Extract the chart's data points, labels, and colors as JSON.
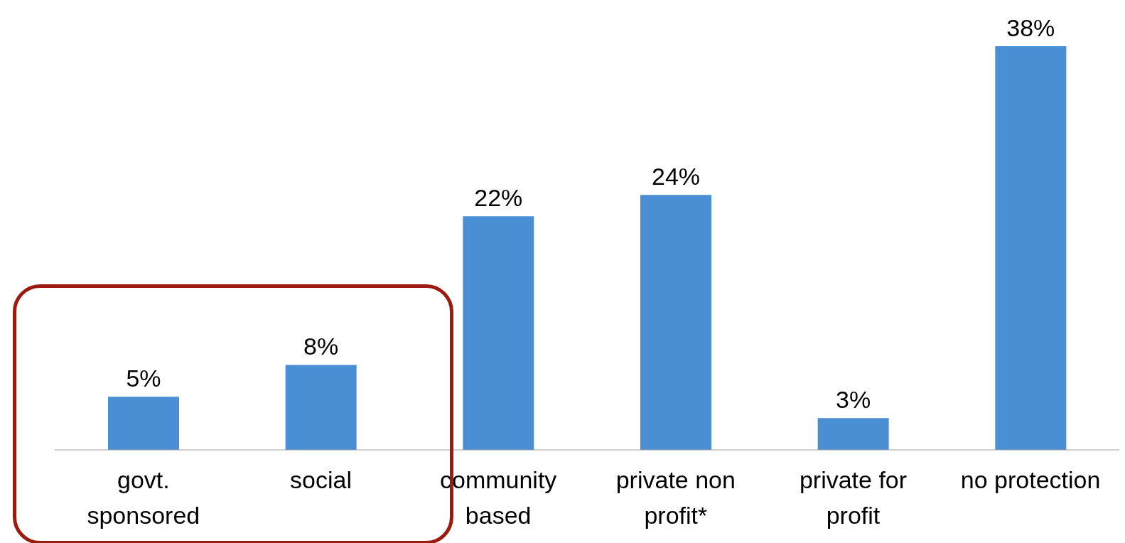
{
  "chart_data": {
    "type": "bar",
    "categories": [
      "govt. sponsored",
      "social",
      "community based",
      "private non profit*",
      "private for profit",
      "no protection"
    ],
    "values": [
      5,
      8,
      22,
      24,
      3,
      38
    ],
    "color": "#4a8fd4",
    "value_labels": [
      "5%",
      "8%",
      "22%",
      "24%",
      "3%",
      "38%"
    ],
    "grid": false,
    "legend": false
  }
}
